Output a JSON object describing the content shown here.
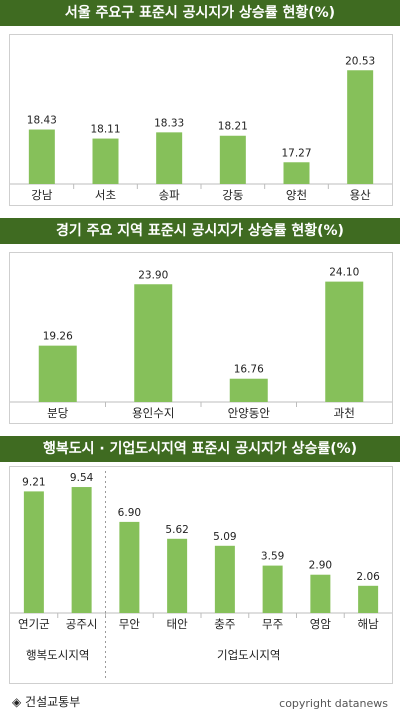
{
  "colors": {
    "header_bg": "#3f6b21",
    "bar": "#86c05a",
    "bar_stroke": "#6ea544"
  },
  "chart_data": [
    {
      "type": "bar",
      "title": "서울 주요구 표준시 공시지가 상승률 현황(%)",
      "categories": [
        "강남",
        "서초",
        "송파",
        "강동",
        "양천",
        "용산"
      ],
      "values": [
        18.43,
        18.11,
        18.33,
        18.21,
        17.27,
        20.53
      ],
      "value_labels": [
        "18.43",
        "18.11",
        "18.33",
        "18.21",
        "17.27",
        "20.53"
      ],
      "ylim": [
        16.5,
        21.0
      ],
      "grid": false
    },
    {
      "type": "bar",
      "title": "경기 주요 지역 표준시 공시지가 상승률 현황(%)",
      "categories": [
        "분당",
        "용인수지",
        "안양동안",
        "과천"
      ],
      "values": [
        19.26,
        23.9,
        16.76,
        24.1
      ],
      "value_labels": [
        "19.26",
        "23.90",
        "16.76",
        "24.10"
      ],
      "ylim": [
        15.0,
        24.6
      ],
      "grid": false
    },
    {
      "type": "bar",
      "title": "행복도시 · 기업도시지역 표준시 공시지가 상승률(%)",
      "categories": [
        "연기군",
        "공주시",
        "무안",
        "태안",
        "충주",
        "무주",
        "영암",
        "해남"
      ],
      "values": [
        9.21,
        9.54,
        6.9,
        5.62,
        5.09,
        3.59,
        2.9,
        2.06
      ],
      "value_labels": [
        "9.21",
        "9.54",
        "6.90",
        "5.62",
        "5.09",
        "3.59",
        "2.90",
        "2.06"
      ],
      "ylim": [
        0,
        10.3
      ],
      "groups": [
        {
          "name": "행복도시지역",
          "count": 2
        },
        {
          "name": "기업도시지역",
          "count": 6
        }
      ],
      "grid": false
    }
  ],
  "footer": {
    "source": "◈ 건설교통부",
    "copyright": "copyright datanews"
  }
}
